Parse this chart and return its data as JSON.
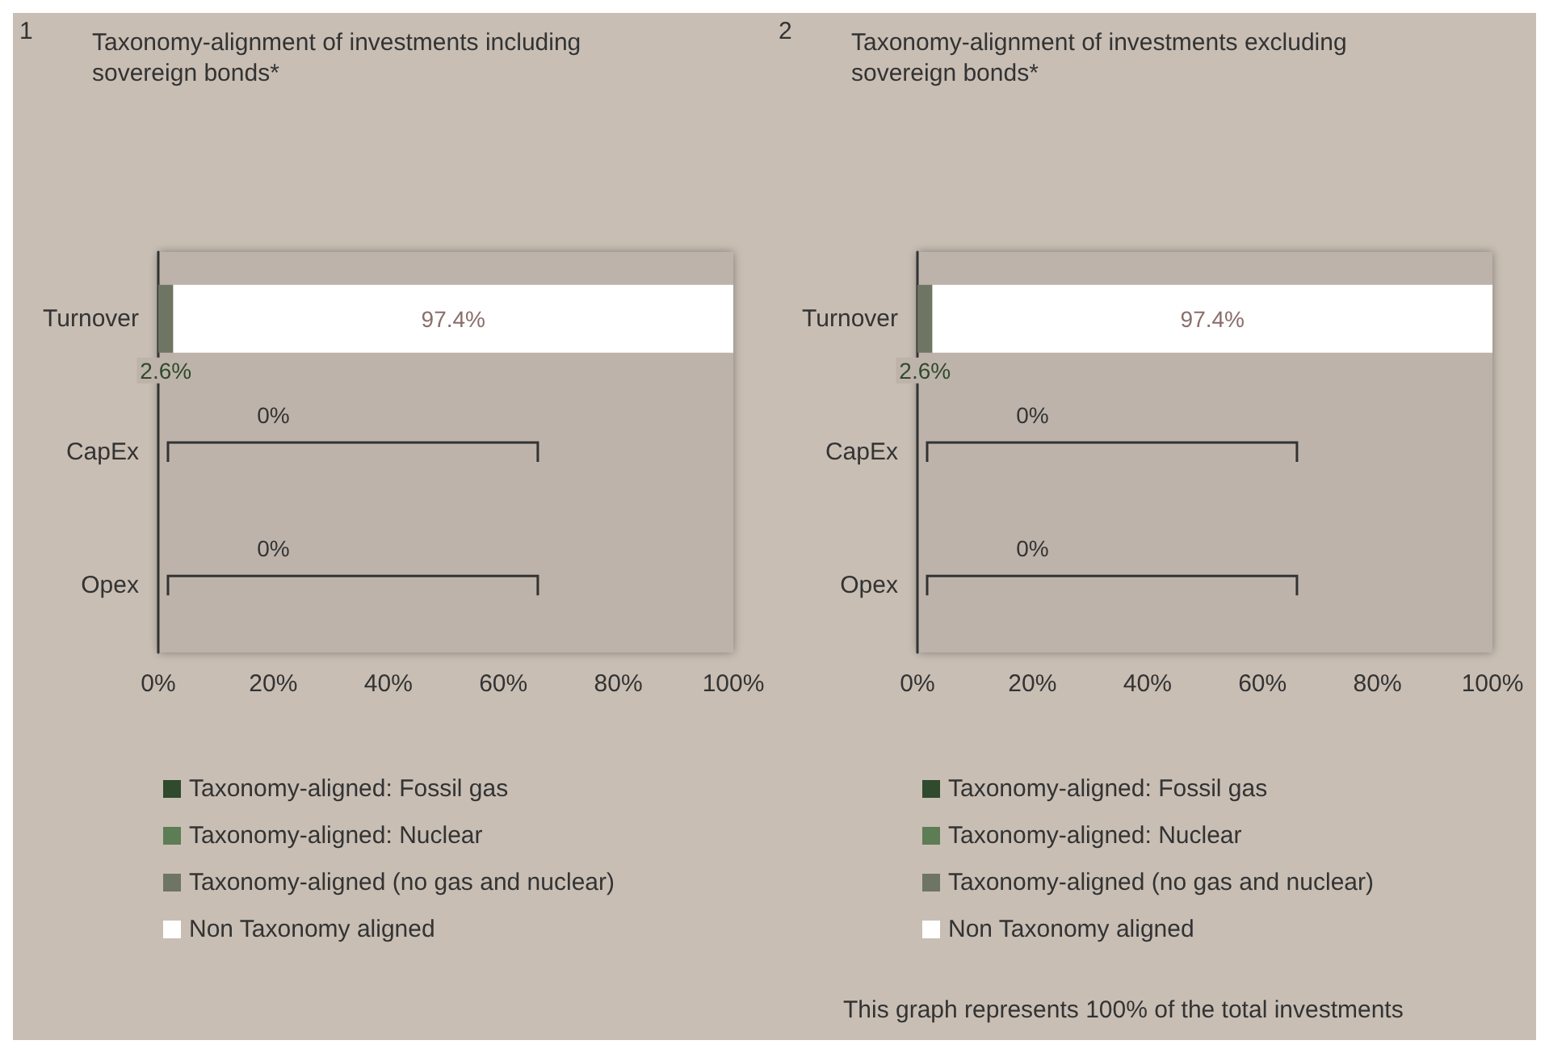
{
  "chart_data": [
    {
      "type": "bar",
      "orientation": "horizontal",
      "stacked": true,
      "title": "Taxonomy-alignment of investments including sovereign bonds*",
      "categories": [
        "Turnover",
        "CapEx",
        "Opex"
      ],
      "xlim": [
        0,
        100
      ],
      "xticks": [
        {
          "value": 0,
          "label": "0%"
        },
        {
          "value": 20,
          "label": "20%"
        },
        {
          "value": 40,
          "label": "40%"
        },
        {
          "value": 60,
          "label": "60%"
        },
        {
          "value": 80,
          "label": "80%"
        },
        {
          "value": 100,
          "label": "100%"
        }
      ],
      "grid": false,
      "legend": "bottom left",
      "series": [
        {
          "name": "Taxonomy-aligned: Fossil gas",
          "color": "#2f4a2c",
          "values": [
            0,
            0,
            0
          ]
        },
        {
          "name": "Taxonomy-aligned: Nuclear",
          "color": "#5d7d54",
          "values": [
            0,
            0,
            0
          ]
        },
        {
          "name": "Taxonomy-aligned (no gas and nuclear)",
          "color": "#6e7563",
          "values": [
            2.6,
            0,
            0
          ],
          "value_labels": [
            "2.6%",
            null,
            null
          ]
        },
        {
          "name": "Non Taxonomy aligned",
          "color": "#ffffff",
          "values": [
            97.4,
            null,
            null
          ],
          "value_labels": [
            "97.4%",
            null,
            null
          ]
        }
      ],
      "annotations": [
        "1",
        "0%",
        "0%"
      ]
    },
    {
      "type": "bar",
      "orientation": "horizontal",
      "stacked": true,
      "title": "Taxonomy-alignment of investments excluding sovereign bonds*",
      "categories": [
        "Turnover",
        "CapEx",
        "Opex"
      ],
      "xlim": [
        0,
        100
      ],
      "xticks": [
        {
          "value": 0,
          "label": "0%"
        },
        {
          "value": 20,
          "label": "20%"
        },
        {
          "value": 40,
          "label": "40%"
        },
        {
          "value": 60,
          "label": "60%"
        },
        {
          "value": 80,
          "label": "80%"
        },
        {
          "value": 100,
          "label": "100%"
        }
      ],
      "grid": false,
      "legend": "bottom left",
      "series": [
        {
          "name": "Taxonomy-aligned: Fossil gas",
          "color": "#2f4a2c",
          "values": [
            0,
            0,
            0
          ]
        },
        {
          "name": "Taxonomy-aligned: Nuclear",
          "color": "#5d7d54",
          "values": [
            0,
            0,
            0
          ]
        },
        {
          "name": "Taxonomy-aligned (no gas and nuclear)",
          "color": "#6e7563",
          "values": [
            2.6,
            0,
            0
          ],
          "value_labels": [
            "2.6%",
            null,
            null
          ]
        },
        {
          "name": "Non Taxonomy aligned",
          "color": "#ffffff",
          "values": [
            97.4,
            null,
            null
          ],
          "value_labels": [
            "97.4%",
            null,
            null
          ]
        }
      ],
      "annotations": [
        "2",
        "0%",
        "0%",
        "This graph represents 100% of the total investments"
      ]
    }
  ]
}
